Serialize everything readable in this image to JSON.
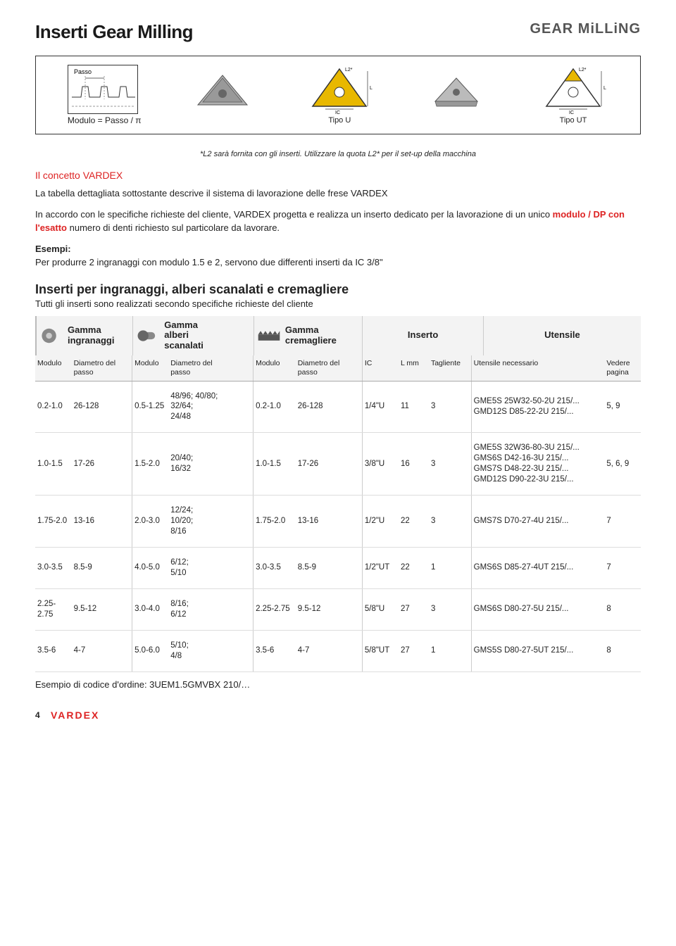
{
  "header": {
    "title": "Inserti Gear Milling",
    "brand": "GEAR MiLLiNG"
  },
  "diagrams": {
    "passo_label": "Passo",
    "modulo_formula": "Modulo = Passo / π",
    "tipo_u": "Tipo U",
    "tipo_ut": "Tipo UT",
    "ic_label": "IC",
    "l_label": "L",
    "l2_label": "L2*",
    "footnote": "*L2 sarà fornita con gli inserti. Utilizzare la quota L2* per il set-up della macchina"
  },
  "concept": {
    "title": "Il concetto VARDEX",
    "p1": "La tabella dettagliata sottostante descrive il sistema di lavorazione delle frese VARDEX",
    "p2a": "In accordo con le specifiche richieste del cliente, VARDEX progetta e realizza un inserto dedicato per la lavorazione di un unico ",
    "p2_hl": "modulo / DP con l'esatto",
    "p2b": " numero di denti richiesto sul particolare da lavorare.",
    "ex_label": "Esempi:",
    "ex_text": "Per produrre 2 ingranaggi con modulo 1.5 e 2, servono due differenti inserti da IC 3/8\""
  },
  "section2": {
    "title": "Inserti per ingranaggi, alberi scanalati e cremagliere",
    "desc": "Tutti gli inserti sono realizzati secondo specifiche richieste del cliente"
  },
  "gamma": {
    "gears": "Gamma\ningranaggi",
    "shafts": "Gamma\nalberi\nscanalati",
    "racks": "Gamma\ncremagliere",
    "insert": "Inserto",
    "tool": "Utensile"
  },
  "table": {
    "headers": {
      "modulo": "Modulo",
      "diam": "Diametro del\npasso",
      "ic": "IC",
      "lmm": "L mm",
      "tagl": "Tagliente",
      "utens": "Utensile necessario",
      "page": "Vedere\npagina"
    },
    "rows": [
      {
        "m1": "0.2-1.0",
        "d1": "26-128",
        "m2": "0.5-1.25",
        "d2": "48/96; 40/80;\n32/64;\n24/48",
        "m3": "0.2-1.0",
        "d3": "26-128",
        "ic": "1/4\"U",
        "l": "11",
        "t": "3",
        "u": "GME5S 25W32-50-2U 215/...\nGMD12S D85-22-2U 215/...",
        "p": "5, 9"
      },
      {
        "m1": "1.0-1.5",
        "d1": "17-26",
        "m2": "1.5-2.0",
        "d2": "20/40;\n16/32",
        "m3": "1.0-1.5",
        "d3": "17-26",
        "ic": "3/8\"U",
        "l": "16",
        "t": "3",
        "u": "GME5S 32W36-80-3U 215/...\nGMS6S D42-16-3U 215/...\nGMS7S D48-22-3U 215/...\nGMD12S D90-22-3U 215/...",
        "p": "5, 6, 9"
      },
      {
        "m1": "1.75-2.0",
        "d1": "13-16",
        "m2": "2.0-3.0",
        "d2": "12/24;\n10/20;\n8/16",
        "m3": "1.75-2.0",
        "d3": "13-16",
        "ic": "1/2\"U",
        "l": "22",
        "t": "3",
        "u": "GMS7S D70-27-4U 215/...",
        "p": "7"
      },
      {
        "m1": "3.0-3.5",
        "d1": "8.5-9",
        "m2": "4.0-5.0",
        "d2": "6/12;\n5/10",
        "m3": "3.0-3.5",
        "d3": "8.5-9",
        "ic": "1/2\"UT",
        "l": "22",
        "t": "1",
        "u": "GMS6S D85-27-4UT 215/...",
        "p": "7"
      },
      {
        "m1": "2.25-2.75",
        "d1": "9.5-12",
        "m2": "3.0-4.0",
        "d2": "8/16;\n6/12",
        "m3": "2.25-2.75",
        "d3": "9.5-12",
        "ic": "5/8\"U",
        "l": "27",
        "t": "3",
        "u": "GMS6S D80-27-5U 215/...",
        "p": "8"
      },
      {
        "m1": "3.5-6",
        "d1": "4-7",
        "m2": "5.0-6.0",
        "d2": "5/10;\n4/8",
        "m3": "3.5-6",
        "d3": "4-7",
        "ic": "5/8\"UT",
        "l": "27",
        "t": "1",
        "u": "GMS5S D80-27-5UT 215/...",
        "p": "8"
      }
    ]
  },
  "order_example": "Esempio di codice d'ordine: 3UEM1.5GMVBX 210/…",
  "footer": {
    "page": "4",
    "logo": "VARDEX"
  }
}
